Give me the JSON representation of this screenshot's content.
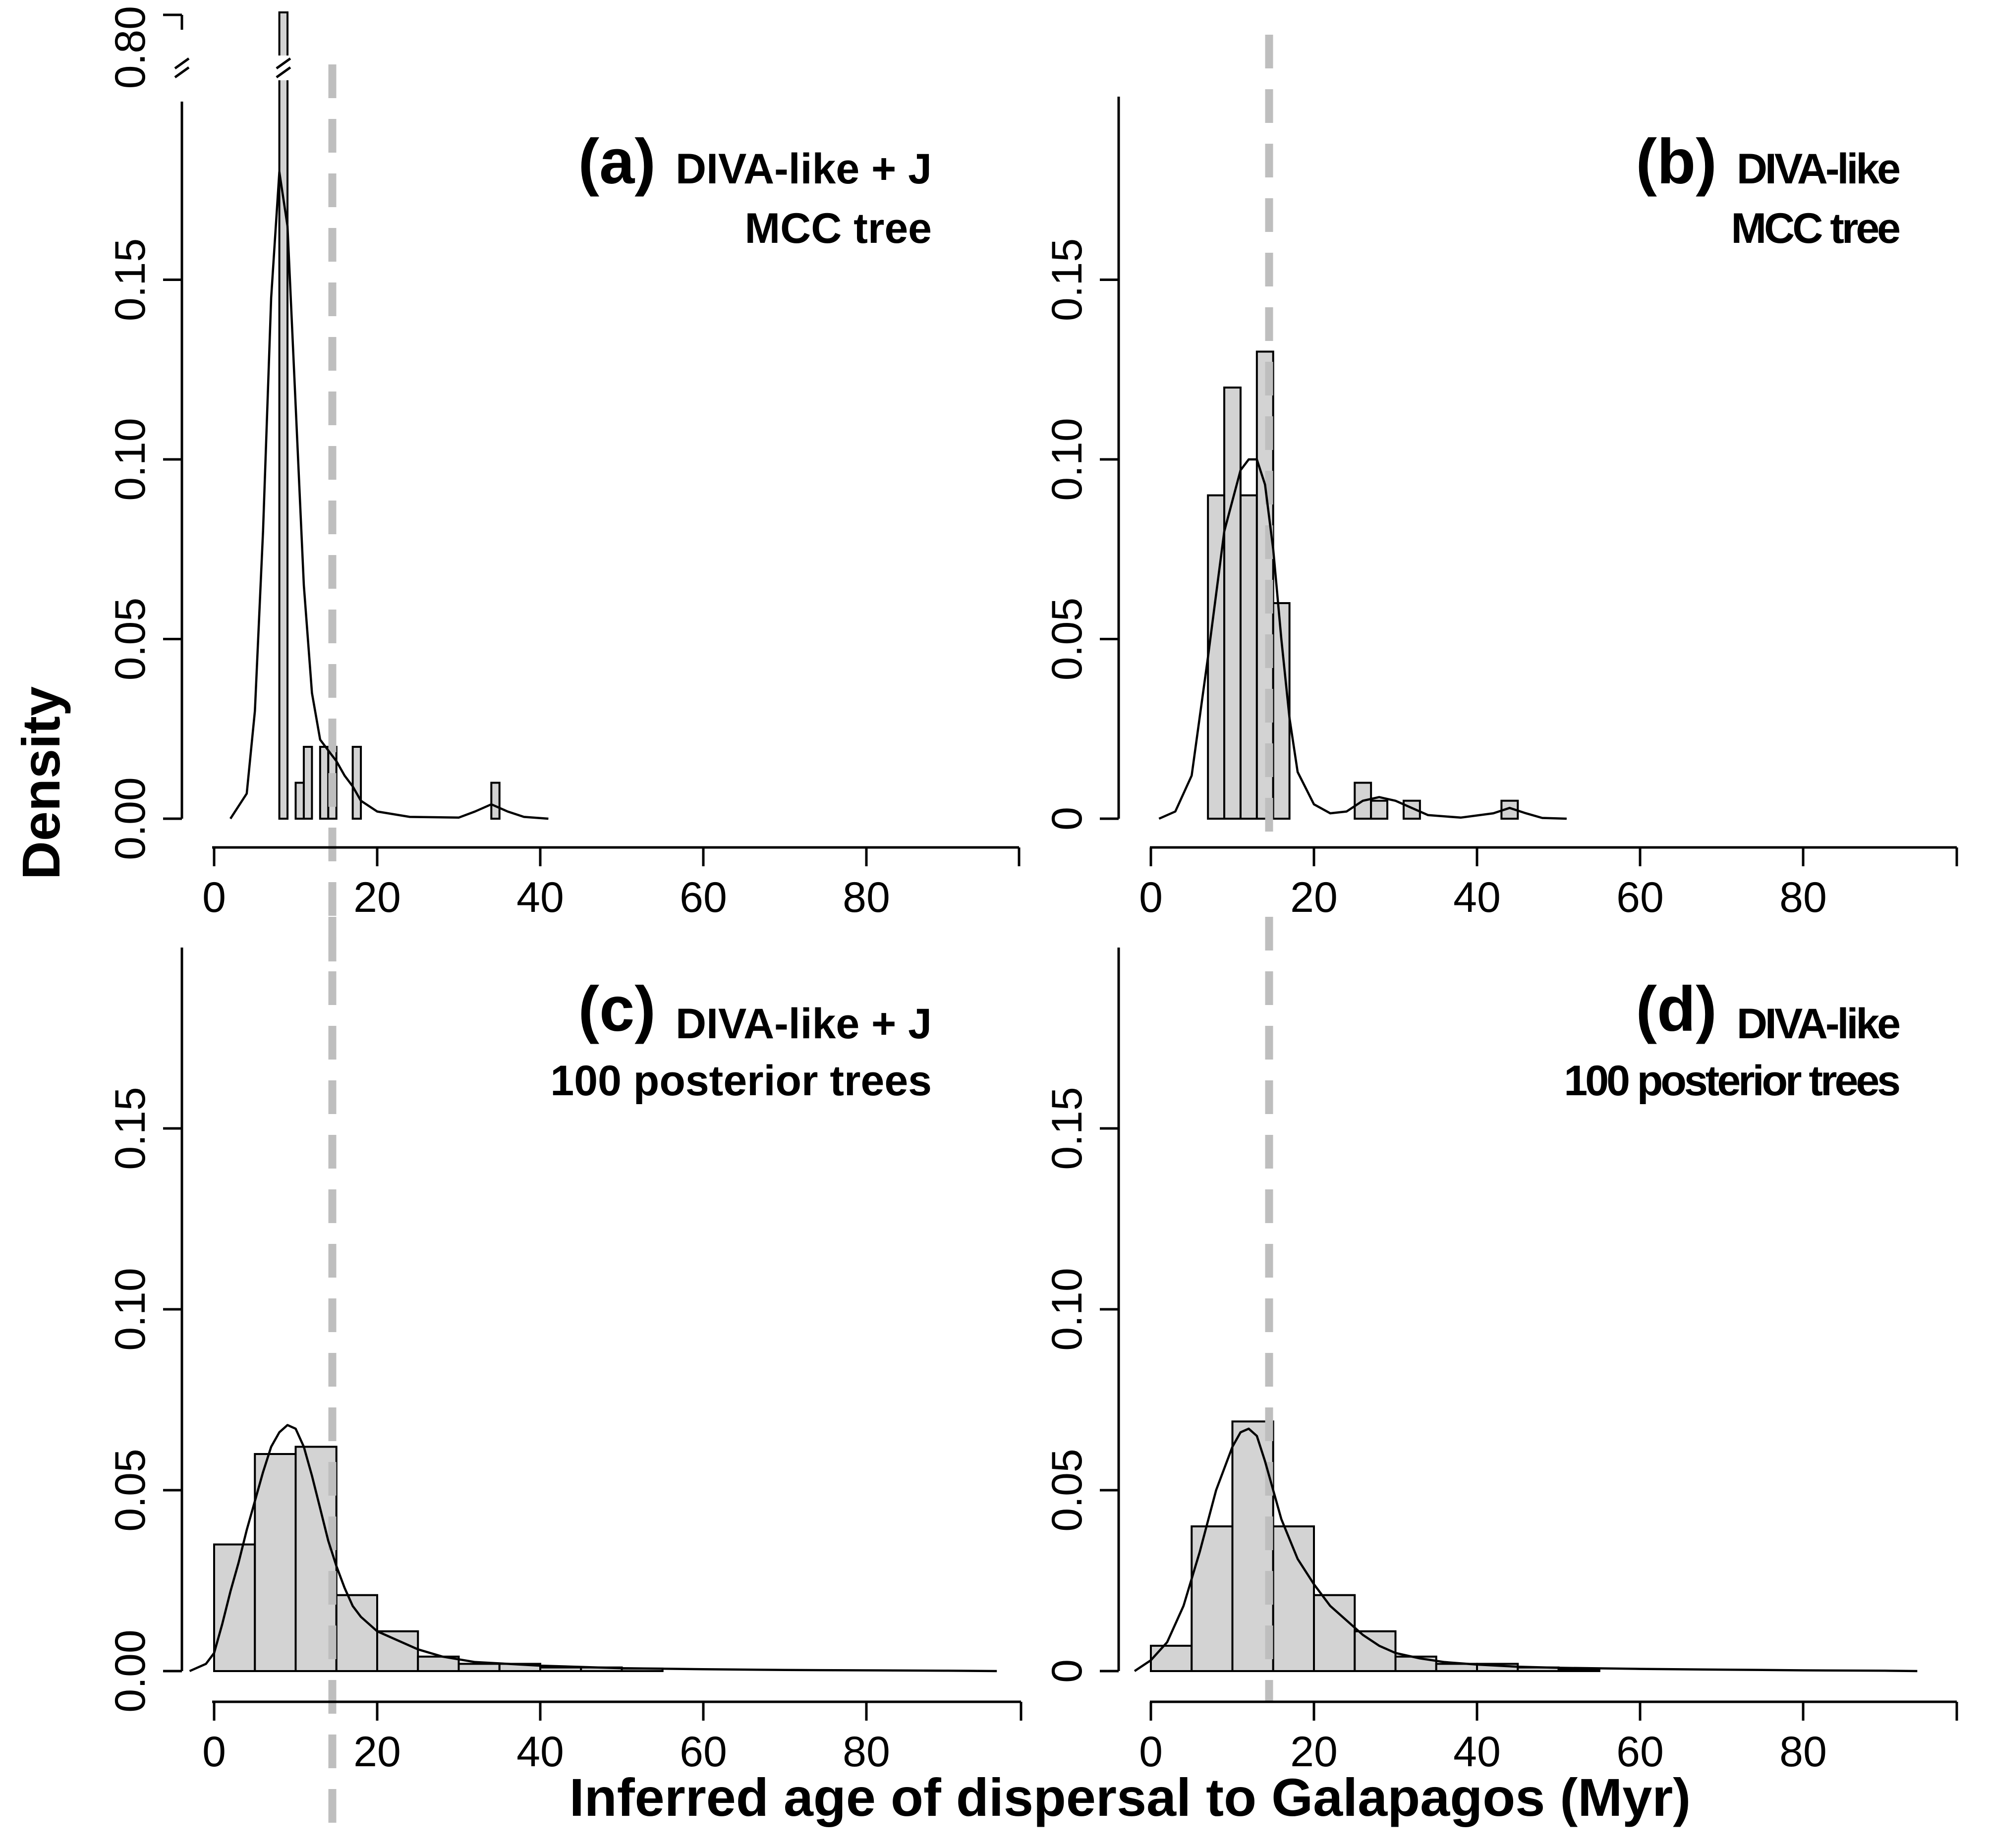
{
  "figure": {
    "ylabel": "Density",
    "xlabel": "Inferred age of dispersal to Galapagos (Myr)",
    "reference_line_x": 14.5,
    "colors": {
      "bar_fill": "#d3d3d3",
      "bar_stroke": "#000000",
      "reference_line": "#bebebe",
      "curve": "#000000",
      "background": "#ffffff"
    }
  },
  "chart_data": [
    {
      "id": "a",
      "type": "bar",
      "letter": "(a)",
      "title_line1": "DIVA-like + J",
      "title_line2": "MCC tree",
      "xlim": [
        0,
        100
      ],
      "ylim": [
        0,
        0.2
      ],
      "xticks": [
        0,
        20,
        40,
        60,
        80
      ],
      "xtick_labels": [
        "0",
        "20",
        "40",
        "60",
        "80"
      ],
      "yticks": [
        0,
        0.05,
        0.1,
        0.15
      ],
      "ytick_labels": [
        "0.00",
        "0.05",
        "0.10",
        "0.15"
      ],
      "axis_break": true,
      "break_tick_label": "0.80",
      "bars": [
        {
          "x0": 8,
          "x1": 9,
          "y": 0.8
        },
        {
          "x0": 10,
          "x1": 11,
          "y": 0.01
        },
        {
          "x0": 11,
          "x1": 12,
          "y": 0.02
        },
        {
          "x0": 13,
          "x1": 14,
          "y": 0.02
        },
        {
          "x0": 14,
          "x1": 15,
          "y": 0.02
        },
        {
          "x0": 17,
          "x1": 18,
          "y": 0.02
        },
        {
          "x0": 34,
          "x1": 35,
          "y": 0.01
        }
      ],
      "density_curve": [
        [
          2,
          0.0
        ],
        [
          4,
          0.007
        ],
        [
          5,
          0.03
        ],
        [
          6,
          0.08
        ],
        [
          7,
          0.145
        ],
        [
          8,
          0.18
        ],
        [
          9,
          0.165
        ],
        [
          10,
          0.115
        ],
        [
          11,
          0.065
        ],
        [
          12,
          0.035
        ],
        [
          13,
          0.022
        ],
        [
          14,
          0.019
        ],
        [
          15,
          0.016
        ],
        [
          16,
          0.012
        ],
        [
          17,
          0.009
        ],
        [
          18,
          0.005
        ],
        [
          20,
          0.002
        ],
        [
          24,
          0.0005
        ],
        [
          30,
          0.0003
        ],
        [
          32,
          0.002
        ],
        [
          34,
          0.004
        ],
        [
          36,
          0.002
        ],
        [
          38,
          0.0005
        ],
        [
          41,
          0.0
        ]
      ]
    },
    {
      "id": "b",
      "type": "bar",
      "letter": "(b)",
      "title_line1": "DIVA-like",
      "title_line2": "MCC tree",
      "xlim": [
        0,
        100
      ],
      "ylim": [
        0,
        0.2
      ],
      "xticks": [
        0,
        20,
        40,
        60,
        80
      ],
      "xtick_labels": [
        "0",
        "20",
        "40",
        "60",
        "80"
      ],
      "yticks": [
        0,
        0.05,
        0.1,
        0.15
      ],
      "ytick_labels": [
        "0",
        "0.05",
        "0.10",
        "0.15"
      ],
      "axis_break": false,
      "bars": [
        {
          "x0": 7,
          "x1": 9,
          "y": 0.09
        },
        {
          "x0": 9,
          "x1": 11,
          "y": 0.12
        },
        {
          "x0": 11,
          "x1": 13,
          "y": 0.09
        },
        {
          "x0": 13,
          "x1": 15,
          "y": 0.13
        },
        {
          "x0": 15,
          "x1": 17,
          "y": 0.06
        },
        {
          "x0": 25,
          "x1": 27,
          "y": 0.01
        },
        {
          "x0": 27,
          "x1": 29,
          "y": 0.005
        },
        {
          "x0": 31,
          "x1": 33,
          "y": 0.005
        },
        {
          "x0": 43,
          "x1": 45,
          "y": 0.005
        }
      ],
      "density_curve": [
        [
          1,
          0.0
        ],
        [
          3,
          0.002
        ],
        [
          5,
          0.012
        ],
        [
          7,
          0.045
        ],
        [
          9,
          0.08
        ],
        [
          11,
          0.097
        ],
        [
          12,
          0.1
        ],
        [
          13,
          0.1
        ],
        [
          14,
          0.093
        ],
        [
          15,
          0.075
        ],
        [
          16,
          0.05
        ],
        [
          17,
          0.028
        ],
        [
          18,
          0.013
        ],
        [
          20,
          0.004
        ],
        [
          22,
          0.0015
        ],
        [
          24,
          0.002
        ],
        [
          26,
          0.005
        ],
        [
          28,
          0.006
        ],
        [
          30,
          0.005
        ],
        [
          32,
          0.003
        ],
        [
          34,
          0.001
        ],
        [
          38,
          0.0003
        ],
        [
          42,
          0.0015
        ],
        [
          44,
          0.003
        ],
        [
          46,
          0.0015
        ],
        [
          48,
          0.0002
        ],
        [
          51,
          0.0
        ]
      ]
    },
    {
      "id": "c",
      "type": "bar",
      "letter": "(c)",
      "title_line1": "DIVA-like + J",
      "title_line2": "100 posterior trees",
      "xlim": [
        0,
        100
      ],
      "ylim": [
        0,
        0.2
      ],
      "xticks": [
        0,
        20,
        40,
        60,
        80
      ],
      "xtick_labels": [
        "0",
        "20",
        "40",
        "60",
        "80"
      ],
      "yticks": [
        0,
        0.05,
        0.1,
        0.15
      ],
      "ytick_labels": [
        "0.00",
        "0.05",
        "0.10",
        "0.15"
      ],
      "axis_break": false,
      "bars": [
        {
          "x0": 0,
          "x1": 5,
          "y": 0.035
        },
        {
          "x0": 5,
          "x1": 10,
          "y": 0.06
        },
        {
          "x0": 10,
          "x1": 15,
          "y": 0.062
        },
        {
          "x0": 15,
          "x1": 20,
          "y": 0.021
        },
        {
          "x0": 20,
          "x1": 25,
          "y": 0.011
        },
        {
          "x0": 25,
          "x1": 30,
          "y": 0.004
        },
        {
          "x0": 30,
          "x1": 35,
          "y": 0.002
        },
        {
          "x0": 35,
          "x1": 40,
          "y": 0.002
        },
        {
          "x0": 40,
          "x1": 45,
          "y": 0.001
        },
        {
          "x0": 45,
          "x1": 50,
          "y": 0.001
        },
        {
          "x0": 50,
          "x1": 55,
          "y": 0.0007
        }
      ],
      "density_curve": [
        [
          -3,
          0.0
        ],
        [
          -1,
          0.002
        ],
        [
          0,
          0.005
        ],
        [
          1,
          0.013
        ],
        [
          2,
          0.022
        ],
        [
          3,
          0.03
        ],
        [
          4,
          0.039
        ],
        [
          5,
          0.047
        ],
        [
          6,
          0.055
        ],
        [
          7,
          0.062
        ],
        [
          8,
          0.066
        ],
        [
          9,
          0.068
        ],
        [
          10,
          0.067
        ],
        [
          11,
          0.062
        ],
        [
          12,
          0.054
        ],
        [
          13,
          0.045
        ],
        [
          14,
          0.036
        ],
        [
          15,
          0.029
        ],
        [
          16,
          0.023
        ],
        [
          17,
          0.018
        ],
        [
          18,
          0.015
        ],
        [
          20,
          0.011
        ],
        [
          22,
          0.009
        ],
        [
          25,
          0.006
        ],
        [
          28,
          0.004
        ],
        [
          32,
          0.0025
        ],
        [
          36,
          0.002
        ],
        [
          40,
          0.0015
        ],
        [
          50,
          0.0008
        ],
        [
          60,
          0.0005
        ],
        [
          70,
          0.0003
        ],
        [
          80,
          0.0002
        ],
        [
          90,
          0.0001
        ],
        [
          96,
          0.0
        ]
      ]
    },
    {
      "id": "d",
      "type": "bar",
      "letter": "(d)",
      "title_line1": "DIVA-like",
      "title_line2": "100 posterior trees",
      "xlim": [
        0,
        100
      ],
      "ylim": [
        0,
        0.2
      ],
      "xticks": [
        0,
        20,
        40,
        60,
        80
      ],
      "xtick_labels": [
        "0",
        "20",
        "40",
        "60",
        "80"
      ],
      "yticks": [
        0,
        0.05,
        0.1,
        0.15
      ],
      "ytick_labels": [
        "0",
        "0.05",
        "0.10",
        "0.15"
      ],
      "axis_break": false,
      "bars": [
        {
          "x0": 0,
          "x1": 5,
          "y": 0.007
        },
        {
          "x0": 5,
          "x1": 10,
          "y": 0.04
        },
        {
          "x0": 10,
          "x1": 15,
          "y": 0.069
        },
        {
          "x0": 15,
          "x1": 20,
          "y": 0.04
        },
        {
          "x0": 20,
          "x1": 25,
          "y": 0.021
        },
        {
          "x0": 25,
          "x1": 30,
          "y": 0.011
        },
        {
          "x0": 30,
          "x1": 35,
          "y": 0.004
        },
        {
          "x0": 35,
          "x1": 40,
          "y": 0.002
        },
        {
          "x0": 40,
          "x1": 45,
          "y": 0.002
        },
        {
          "x0": 45,
          "x1": 50,
          "y": 0.001
        },
        {
          "x0": 50,
          "x1": 55,
          "y": 0.0005
        }
      ],
      "density_curve": [
        [
          -2,
          0.0
        ],
        [
          0,
          0.003
        ],
        [
          2,
          0.008
        ],
        [
          4,
          0.018
        ],
        [
          6,
          0.033
        ],
        [
          8,
          0.05
        ],
        [
          10,
          0.062
        ],
        [
          11,
          0.066
        ],
        [
          12,
          0.067
        ],
        [
          13,
          0.065
        ],
        [
          14,
          0.058
        ],
        [
          15,
          0.05
        ],
        [
          16,
          0.042
        ],
        [
          18,
          0.031
        ],
        [
          20,
          0.024
        ],
        [
          22,
          0.018
        ],
        [
          24,
          0.014
        ],
        [
          26,
          0.01
        ],
        [
          28,
          0.007
        ],
        [
          30,
          0.005
        ],
        [
          33,
          0.0035
        ],
        [
          36,
          0.0025
        ],
        [
          40,
          0.0018
        ],
        [
          45,
          0.0012
        ],
        [
          50,
          0.0009
        ],
        [
          60,
          0.0006
        ],
        [
          70,
          0.0004
        ],
        [
          80,
          0.0002
        ],
        [
          90,
          0.0001
        ],
        [
          94,
          0.0
        ]
      ]
    }
  ]
}
